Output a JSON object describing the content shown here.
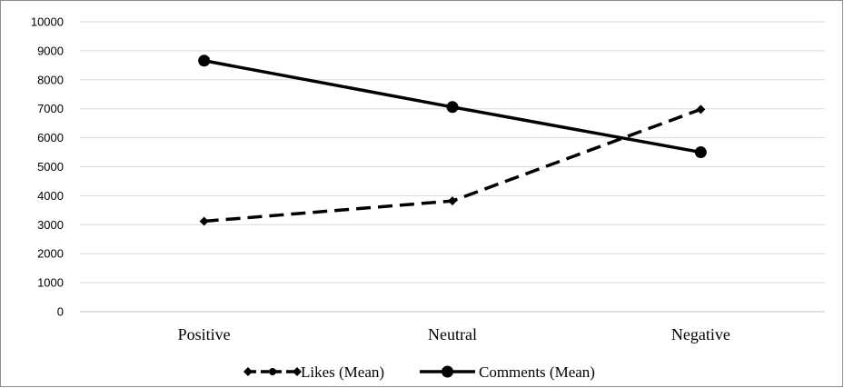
{
  "chart_data": {
    "type": "line",
    "categories": [
      "Positive",
      "Neutral",
      "Negative"
    ],
    "series": [
      {
        "name": "Likes (Mean)",
        "values": [
          3120,
          3820,
          6980
        ],
        "line_style": "dashed",
        "marker": "diamond",
        "color": "#000000"
      },
      {
        "name": "Comments (Mean)",
        "values": [
          8660,
          7060,
          5500
        ],
        "line_style": "solid",
        "marker": "circle",
        "color": "#000000"
      }
    ],
    "ylim": [
      0,
      10000
    ],
    "yticks": [
      0,
      1000,
      2000,
      3000,
      4000,
      5000,
      6000,
      7000,
      8000,
      9000,
      10000
    ],
    "grid": true,
    "legend_position": "bottom",
    "title": "",
    "xlabel": "",
    "ylabel": ""
  }
}
